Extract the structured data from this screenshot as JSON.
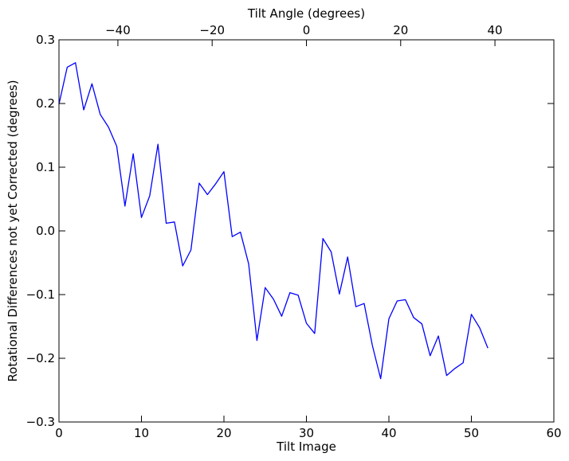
{
  "chart_data": {
    "type": "line",
    "xlabel": "Tilt Image",
    "ylabel": "Rotational Differences not yet Corrected (degrees)",
    "top_xlabel": "Tilt Angle (degrees)",
    "xlim": [
      0,
      60
    ],
    "ylim": [
      -0.3,
      0.3
    ],
    "top_xlim": [
      -52.5,
      52.5
    ],
    "x_ticks": [
      0,
      10,
      20,
      30,
      40,
      50,
      60
    ],
    "y_ticks": [
      -0.3,
      -0.2,
      -0.1,
      0.0,
      0.1,
      0.2,
      0.3
    ],
    "top_x_ticks": [
      -40,
      -20,
      0,
      20,
      40
    ],
    "x_tick_labels": [
      "0",
      "10",
      "20",
      "30",
      "40",
      "50",
      "60"
    ],
    "y_tick_labels": [
      "−0.3",
      "−0.2",
      "−0.1",
      "0.0",
      "0.1",
      "0.2",
      "0.3"
    ],
    "top_x_tick_labels": [
      "−40",
      "−20",
      "0",
      "20",
      "40"
    ],
    "grid": false,
    "series": [
      {
        "color": "#0000ff",
        "x": [
          0,
          1,
          2,
          3,
          4,
          5,
          6,
          7,
          8,
          9,
          10,
          11,
          12,
          13,
          14,
          15,
          16,
          17,
          18,
          19,
          20,
          21,
          22,
          23,
          24,
          25,
          26,
          27,
          28,
          29,
          30,
          31,
          32,
          33,
          34,
          35,
          36,
          37,
          38,
          39,
          40,
          41,
          42,
          43,
          44,
          45,
          46,
          47,
          48,
          49,
          50,
          51,
          52
        ],
        "y": [
          0.199,
          0.257,
          0.264,
          0.19,
          0.231,
          0.183,
          0.163,
          0.133,
          0.039,
          0.121,
          0.021,
          0.055,
          0.136,
          0.012,
          0.014,
          -0.055,
          -0.03,
          0.075,
          0.057,
          0.074,
          0.093,
          -0.009,
          -0.002,
          -0.052,
          -0.172,
          -0.089,
          -0.107,
          -0.134,
          -0.097,
          -0.101,
          -0.145,
          -0.161,
          -0.012,
          -0.033,
          -0.099,
          -0.041,
          -0.119,
          -0.114,
          -0.18,
          -0.232,
          -0.138,
          -0.11,
          -0.108,
          -0.136,
          -0.146,
          -0.196,
          -0.165,
          -0.227,
          -0.216,
          -0.207,
          -0.131,
          -0.152,
          -0.184
        ]
      }
    ]
  }
}
